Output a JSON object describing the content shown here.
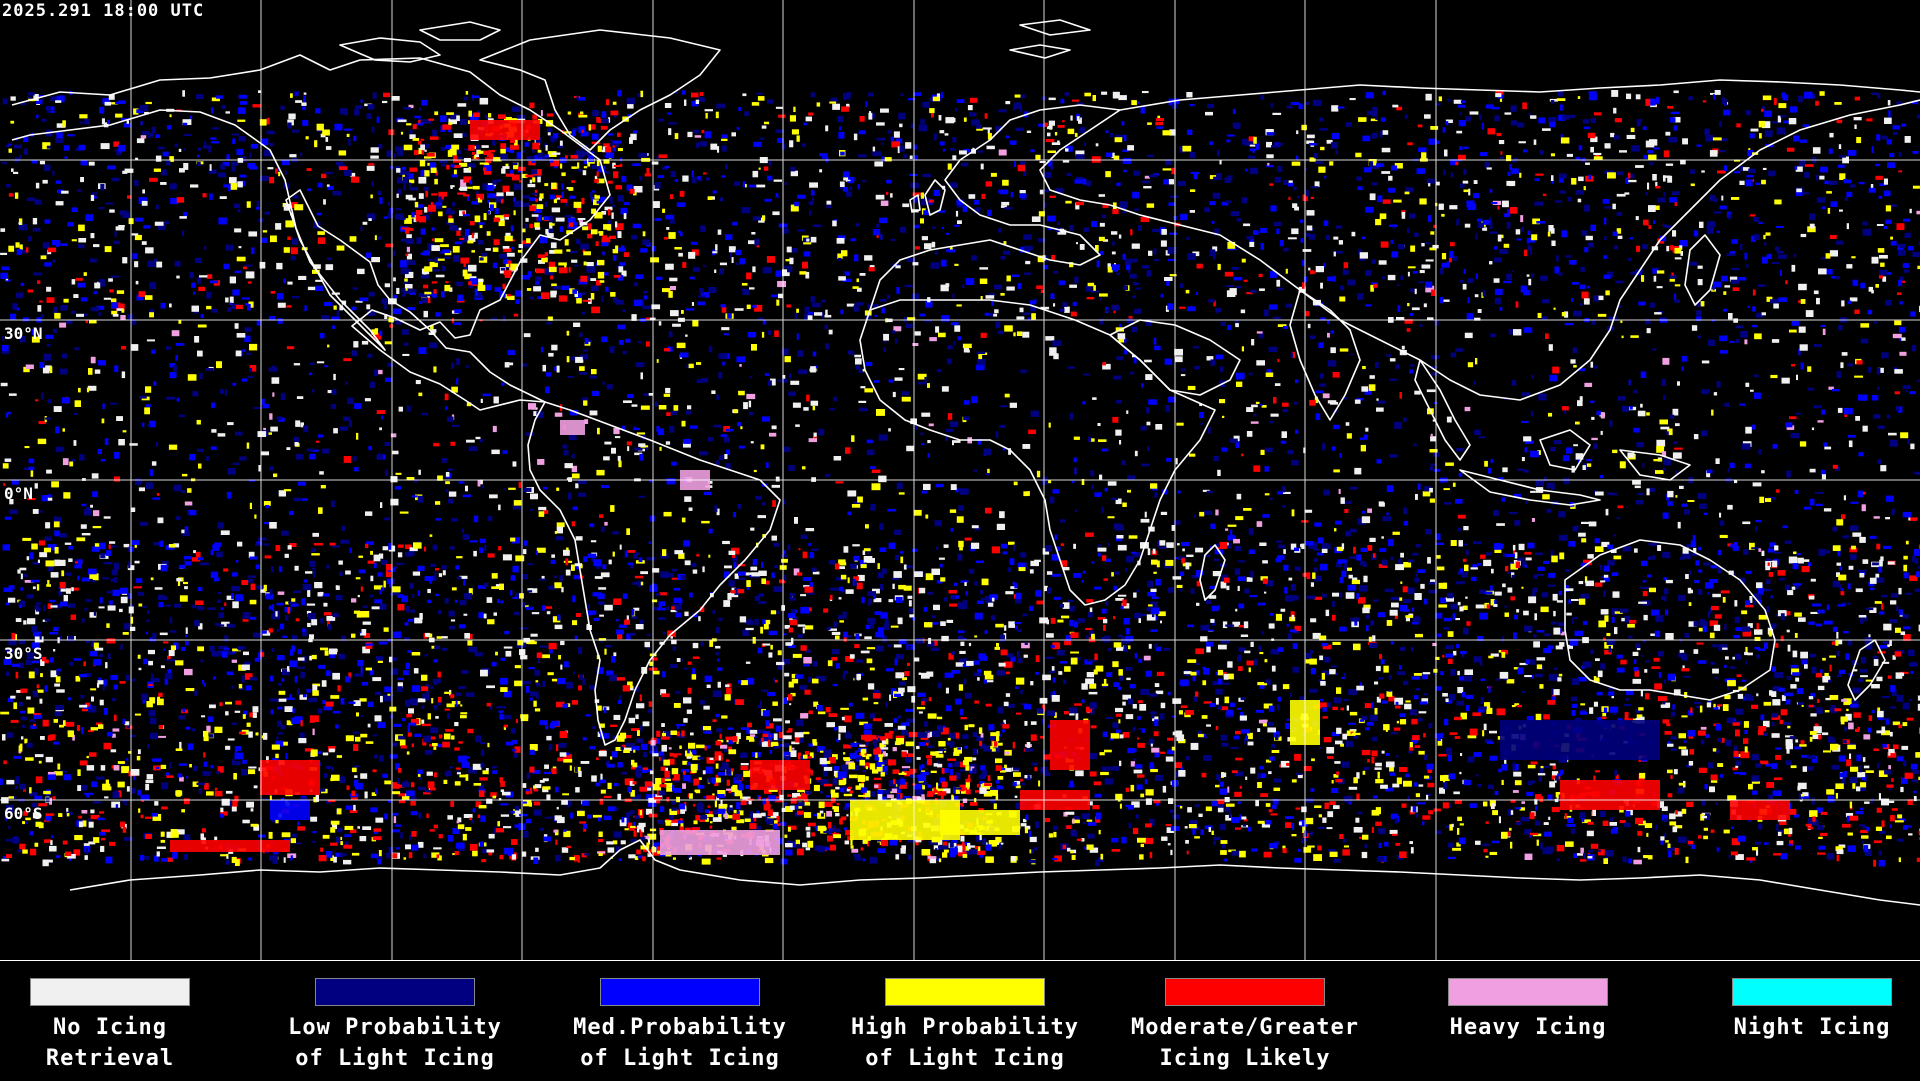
{
  "map": {
    "timestamp": "2025.291 18:00 UTC",
    "latitude_labels": [
      {
        "text": "30°N",
        "lat": 30
      },
      {
        "text": "0°N",
        "lat": 0
      },
      {
        "text": "30°S",
        "lat": -30
      },
      {
        "text": "60°S",
        "lat": -60
      }
    ],
    "colors": {
      "background": "#000000",
      "grid": "#ffffff",
      "coastline": "#ffffff"
    }
  },
  "legend": {
    "items": [
      {
        "label": "No Icing\nRetrieval",
        "color": "#f0f0f0"
      },
      {
        "label": "Low Probability\nof Light Icing",
        "color": "#000080"
      },
      {
        "label": "Med.Probability\nof Light Icing",
        "color": "#0000ff"
      },
      {
        "label": "High Probability\nof Light Icing",
        "color": "#ffff00"
      },
      {
        "label": "Moderate/Greater\nIcing Likely",
        "color": "#ff0000"
      },
      {
        "label": "Heavy Icing",
        "color": "#f0a0e0"
      },
      {
        "label": "Night Icing",
        "color": "#00ffff"
      }
    ]
  }
}
